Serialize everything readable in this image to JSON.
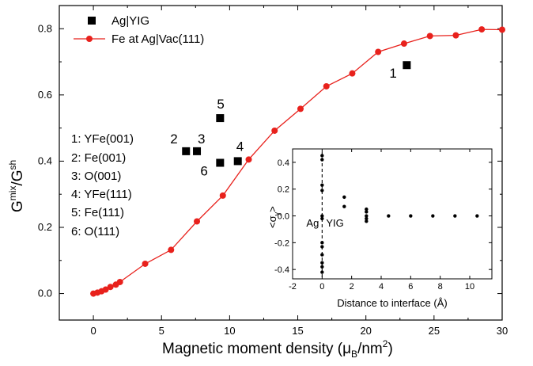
{
  "chart_data": {
    "main": {
      "type": "line",
      "xlabel_main": "Magnetic moment density (",
      "xlabel_mu": "μ",
      "xlabel_sub": "B",
      "xlabel_unit": "/nm",
      "xlabel_sup": "2",
      "xlabel_close": ")",
      "ylabel_g": "G",
      "ylabel_sup1": "mix",
      "ylabel_slash": "/G",
      "ylabel_sup2": "sh",
      "xlim": [
        -2.5,
        30
      ],
      "ylim": [
        -0.08,
        0.87
      ],
      "xticks": [
        "0",
        "5",
        "10",
        "15",
        "20",
        "25",
        "30"
      ],
      "xtick_values": [
        0,
        5,
        10,
        15,
        20,
        25,
        30
      ],
      "yticks": [
        "0.0",
        "0.2",
        "0.4",
        "0.6",
        "0.8"
      ],
      "ytick_values": [
        0.0,
        0.2,
        0.4,
        0.6,
        0.8
      ],
      "legend_placement": "top-left",
      "series": [
        {
          "name": "Ag|YIG",
          "style": "square-marker",
          "color": "#000000",
          "points": [
            {
              "x": 23.0,
              "y": 0.69,
              "label": "1"
            },
            {
              "x": 6.8,
              "y": 0.43,
              "label": "2"
            },
            {
              "x": 7.6,
              "y": 0.43,
              "label": "3"
            },
            {
              "x": 10.6,
              "y": 0.4,
              "label": "4"
            },
            {
              "x": 9.3,
              "y": 0.53,
              "label": "5"
            },
            {
              "x": 9.3,
              "y": 0.395,
              "label": "6"
            }
          ]
        },
        {
          "name": "Fe at Ag|Vac(111)",
          "style": "line-with-circles",
          "color": "#e8211c",
          "x": [
            0,
            0.3,
            0.6,
            0.9,
            1.25,
            1.65,
            1.95,
            3.8,
            5.7,
            7.6,
            9.5,
            11.4,
            13.3,
            15.2,
            17.1,
            19.0,
            20.9,
            22.8,
            24.7,
            26.6,
            28.5,
            30
          ],
          "y": [
            0,
            0.003,
            0.007,
            0.012,
            0.02,
            0.027,
            0.035,
            0.09,
            0.132,
            0.218,
            0.296,
            0.405,
            0.492,
            0.558,
            0.626,
            0.665,
            0.73,
            0.755,
            0.778,
            0.78,
            0.798,
            0.797
          ]
        }
      ],
      "annotations": [
        "1: YFe(001)",
        "2: Fe(001)",
        "3: O(001)",
        "4: YFe(111)",
        "5: Fe(111)",
        "6: O(111)"
      ]
    },
    "inset": {
      "type": "scatter",
      "xlabel": "Distance to interface (Å)",
      "ylabel_open": "<σ",
      "ylabel_sub": "y",
      "ylabel_close": ">",
      "xlim": [
        -2,
        11.5
      ],
      "ylim": [
        -0.47,
        0.5
      ],
      "xticks": [
        "-2",
        "0",
        "2",
        "4",
        "6",
        "8",
        "10"
      ],
      "xtick_values": [
        -2,
        0,
        2,
        4,
        6,
        8,
        10
      ],
      "yticks": [
        "0.4",
        "0.2",
        "0.0",
        "-0.2",
        "-0.4"
      ],
      "ytick_values": [
        0.4,
        0.2,
        0.0,
        -0.2,
        -0.4
      ],
      "region_labels": [
        "Ag",
        "YIG"
      ],
      "interface_x": 0,
      "points": [
        {
          "x": 0,
          "y": 0.45
        },
        {
          "x": 0,
          "y": 0.42
        },
        {
          "x": 0,
          "y": 0.23
        },
        {
          "x": 0,
          "y": 0.19
        },
        {
          "x": 0,
          "y": 0.0
        },
        {
          "x": 0,
          "y": -0.02
        },
        {
          "x": 0,
          "y": -0.2
        },
        {
          "x": 0,
          "y": -0.23
        },
        {
          "x": 0,
          "y": -0.29
        },
        {
          "x": 0,
          "y": -0.35
        },
        {
          "x": 0,
          "y": -0.38
        },
        {
          "x": 0,
          "y": -0.42
        },
        {
          "x": 1.5,
          "y": 0.14
        },
        {
          "x": 1.5,
          "y": 0.07
        },
        {
          "x": 3.0,
          "y": 0.05
        },
        {
          "x": 3.0,
          "y": 0.03
        },
        {
          "x": 3.0,
          "y": 0.0
        },
        {
          "x": 3.0,
          "y": -0.02
        },
        {
          "x": 3.0,
          "y": -0.04
        },
        {
          "x": 4.5,
          "y": 0.0
        },
        {
          "x": 6.0,
          "y": 0.0
        },
        {
          "x": 7.5,
          "y": 0.0
        },
        {
          "x": 9.0,
          "y": 0.0
        },
        {
          "x": 10.5,
          "y": 0.0
        }
      ]
    }
  }
}
